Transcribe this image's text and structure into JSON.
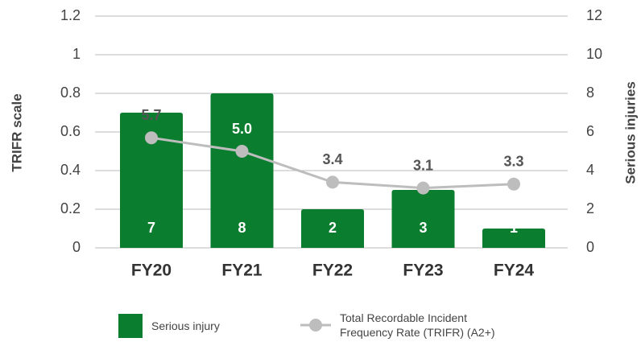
{
  "chart_data": {
    "type": "bar-line",
    "ylabel": "TRIFR scale",
    "y2label": "Serious injuries",
    "categories": [
      "FY20",
      "FY21",
      "FY22",
      "FY23",
      "FY24"
    ],
    "series": [
      {
        "name": "Serious injury",
        "type": "bar",
        "color": "#0b7d2e",
        "axis": "y2",
        "values": [
          7,
          8,
          2,
          3,
          1
        ]
      },
      {
        "name": "Total Recordable Incident Frequency Rate (TRIFR) (A2+)",
        "type": "line",
        "color": "#bdbdbd",
        "axis": "y2",
        "values": [
          5.7,
          5.0,
          3.4,
          3.1,
          3.3
        ],
        "value_labels": [
          "5.7",
          "5.0",
          "3.4",
          "3.1",
          "3.3"
        ]
      }
    ],
    "ylim": [
      0,
      1.2
    ],
    "yticks": [
      0,
      0.2,
      0.4,
      0.6,
      0.8,
      1,
      1.2
    ],
    "y2lim": [
      0,
      12
    ],
    "y2ticks": [
      0,
      2,
      4,
      6,
      8,
      10,
      12
    ],
    "grid": true,
    "legend": "bottom"
  }
}
